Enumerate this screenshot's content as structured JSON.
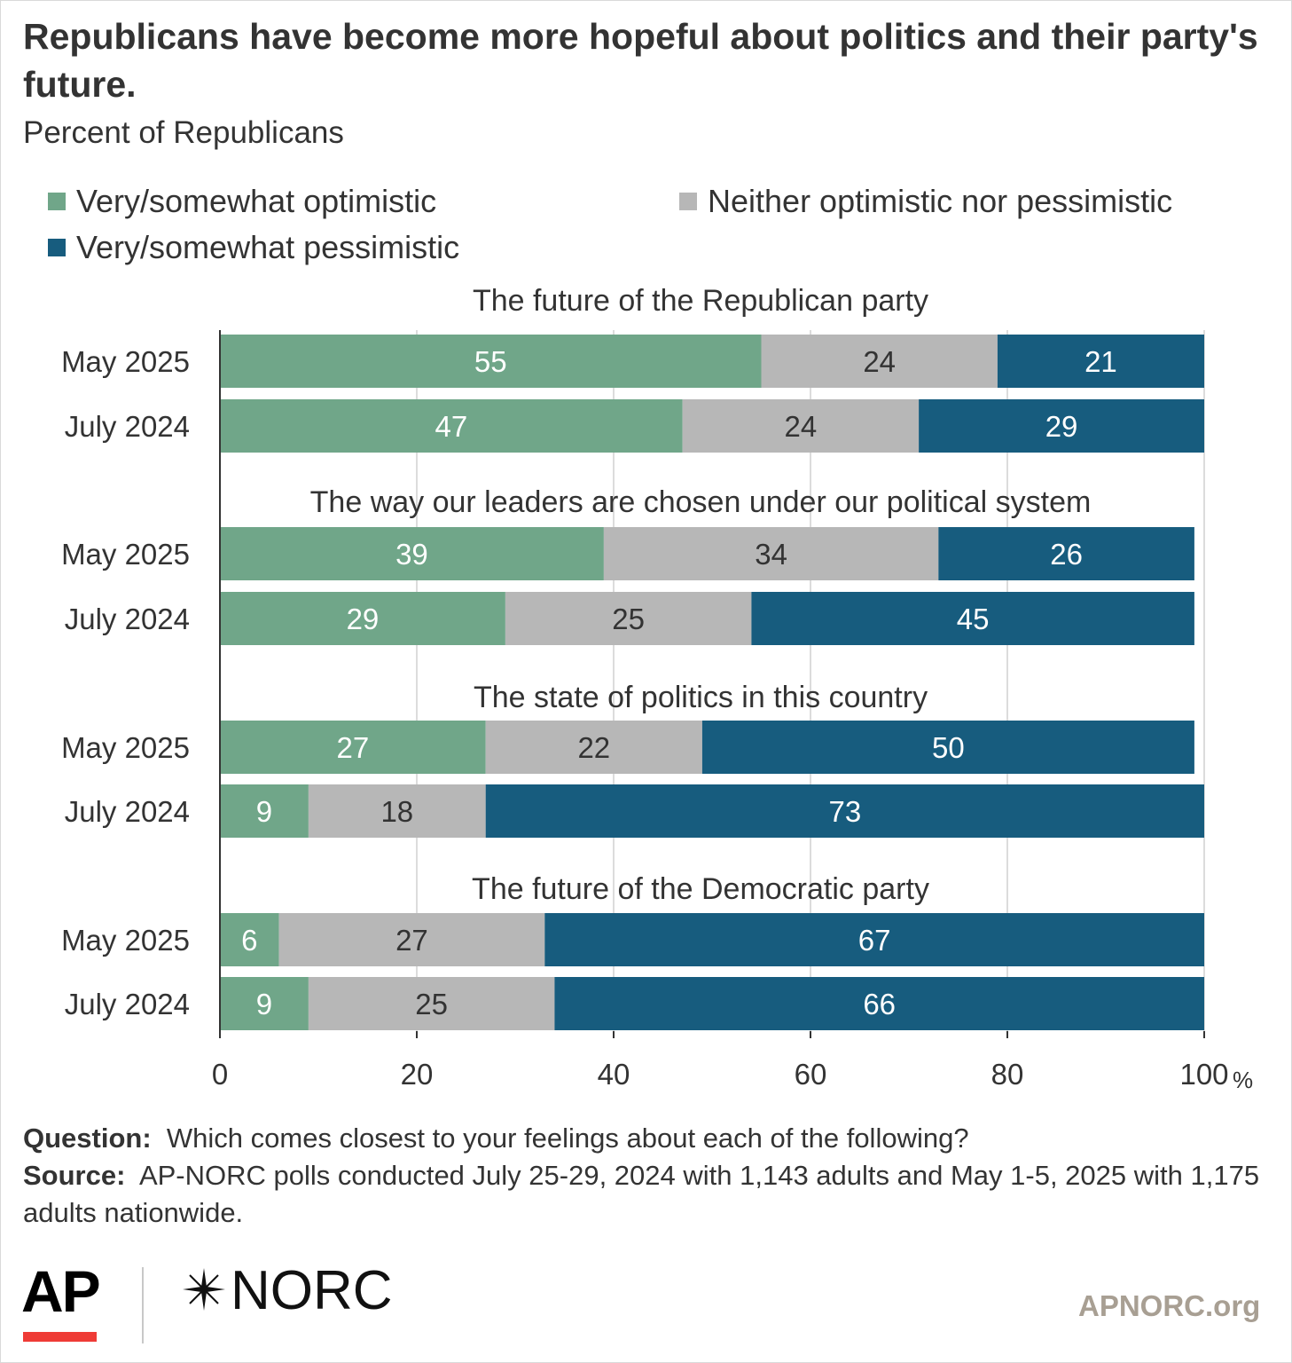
{
  "header": {
    "title": "Republicans have become more hopeful about politics and their party's future.",
    "subtitle": "Percent of Republicans"
  },
  "legend": [
    {
      "label": "Very/somewhat optimistic",
      "color": "#70a689"
    },
    {
      "label": "Neither optimistic nor pessimistic",
      "color": "#b7b7b7"
    },
    {
      "label": "Very/somewhat pessimistic",
      "color": "#175c7e"
    }
  ],
  "chart_data": {
    "type": "bar",
    "orientation": "horizontal",
    "stacked": true,
    "unit": "%",
    "xlim": [
      0,
      100
    ],
    "xticks": [
      0,
      20,
      40,
      60,
      80,
      100
    ],
    "xtick_labels": [
      "0",
      "20",
      "40",
      "60",
      "80",
      "100"
    ],
    "grid": true,
    "legend_position": "top",
    "series": [
      {
        "name": "Very/somewhat optimistic",
        "color": "#70a689"
      },
      {
        "name": "Neither optimistic nor pessimistic",
        "color": "#b7b7b7"
      },
      {
        "name": "Very/somewhat pessimistic",
        "color": "#175c7e"
      }
    ],
    "groups": [
      {
        "title": "The future of the Republican party",
        "rows": [
          {
            "label": "May 2025",
            "values": [
              55,
              24,
              21
            ]
          },
          {
            "label": "July 2024",
            "values": [
              47,
              24,
              29
            ]
          }
        ]
      },
      {
        "title": "The way our leaders are chosen under our political system",
        "rows": [
          {
            "label": "May 2025",
            "values": [
              39,
              34,
              26
            ]
          },
          {
            "label": "July 2024",
            "values": [
              29,
              25,
              45
            ]
          }
        ]
      },
      {
        "title": "The state of politics in this country",
        "rows": [
          {
            "label": "May 2025",
            "values": [
              27,
              22,
              50
            ]
          },
          {
            "label": "July 2024",
            "values": [
              9,
              18,
              73
            ]
          }
        ]
      },
      {
        "title": "The future of the Democratic party",
        "rows": [
          {
            "label": "May 2025",
            "values": [
              6,
              27,
              67
            ]
          },
          {
            "label": "July 2024",
            "values": [
              9,
              25,
              66
            ]
          }
        ]
      }
    ]
  },
  "notes": {
    "question_label": "Question:",
    "question_text": "Which comes closest to your feelings about each of the following?",
    "source_label": "Source:",
    "source_text": "AP-NORC polls conducted July 25-29, 2024 with 1,143 adults and May 1-5, 2025 with 1,175 adults nationwide."
  },
  "footer": {
    "ap_logo": "AP",
    "norc_logo": "NORC",
    "site": "APNORC.org"
  }
}
